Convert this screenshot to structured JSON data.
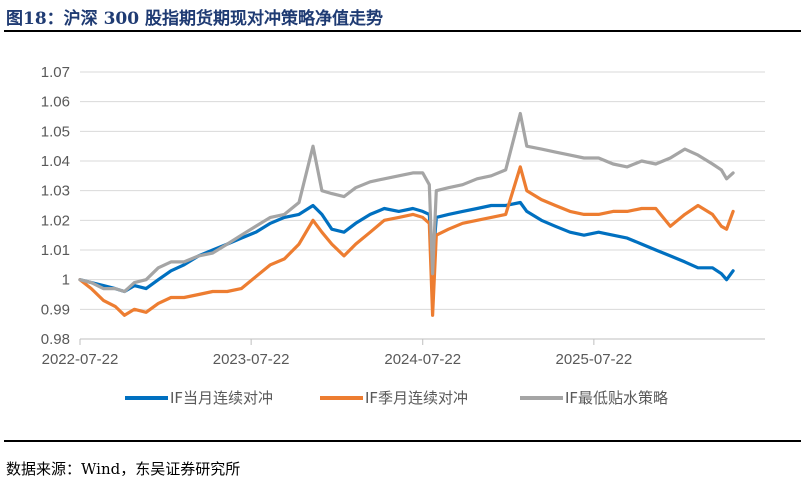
{
  "header": {
    "title": "图18：沪深 300 股指期货期现对冲策略净值走势"
  },
  "footer": {
    "source": "数据来源：Wind，东吴证券研究所"
  },
  "chart_data": {
    "type": "line",
    "title": "图18：沪深 300 股指期货期现对冲策略净值走势",
    "xlabel": "",
    "ylabel": "",
    "x_ticks": [
      "2022-07-22",
      "2023-07-22",
      "2024-07-22",
      "2025-07-22"
    ],
    "y_ticks": [
      "0.98",
      "0.99",
      "1",
      "1.01",
      "1.02",
      "1.03",
      "1.04",
      "1.05",
      "1.06",
      "1.07"
    ],
    "ylim": [
      0.98,
      1.07
    ],
    "xlim": [
      "2022-07-22",
      "2026-07-22"
    ],
    "grid": "horizontal",
    "legend_position": "bottom",
    "series": [
      {
        "name": "IF当月连续对冲",
        "color": "#0070C0",
        "points": [
          [
            "2022-07-22",
            1.0
          ],
          [
            "2022-08-15",
            0.999
          ],
          [
            "2022-09-10",
            0.998
          ],
          [
            "2022-10-05",
            0.997
          ],
          [
            "2022-10-25",
            0.996
          ],
          [
            "2022-11-15",
            0.998
          ],
          [
            "2022-12-10",
            0.997
          ],
          [
            "2023-01-05",
            1.0
          ],
          [
            "2023-02-01",
            1.003
          ],
          [
            "2023-03-01",
            1.005
          ],
          [
            "2023-04-01",
            1.008
          ],
          [
            "2023-05-01",
            1.01
          ],
          [
            "2023-06-01",
            1.012
          ],
          [
            "2023-07-01",
            1.014
          ],
          [
            "2023-08-01",
            1.016
          ],
          [
            "2023-09-01",
            1.019
          ],
          [
            "2023-10-01",
            1.021
          ],
          [
            "2023-11-01",
            1.022
          ],
          [
            "2023-12-01",
            1.025
          ],
          [
            "2023-12-20",
            1.022
          ],
          [
            "2024-01-10",
            1.017
          ],
          [
            "2024-02-05",
            1.016
          ],
          [
            "2024-03-01",
            1.019
          ],
          [
            "2024-04-01",
            1.022
          ],
          [
            "2024-05-01",
            1.024
          ],
          [
            "2024-06-01",
            1.023
          ],
          [
            "2024-07-01",
            1.024
          ],
          [
            "2024-07-22",
            1.023
          ],
          [
            "2024-08-05",
            1.022
          ],
          [
            "2024-08-12",
            1.005
          ],
          [
            "2024-08-20",
            1.021
          ],
          [
            "2024-09-15",
            1.022
          ],
          [
            "2024-10-15",
            1.023
          ],
          [
            "2024-11-15",
            1.024
          ],
          [
            "2024-12-15",
            1.025
          ],
          [
            "2025-01-15",
            1.025
          ],
          [
            "2025-02-15",
            1.026
          ],
          [
            "2025-03-01",
            1.023
          ],
          [
            "2025-04-01",
            1.02
          ],
          [
            "2025-05-01",
            1.018
          ],
          [
            "2025-06-01",
            1.016
          ],
          [
            "2025-07-01",
            1.015
          ],
          [
            "2025-08-01",
            1.016
          ],
          [
            "2025-09-01",
            1.015
          ],
          [
            "2025-10-01",
            1.014
          ],
          [
            "2025-11-01",
            1.012
          ],
          [
            "2025-12-01",
            1.01
          ],
          [
            "2026-01-01",
            1.008
          ],
          [
            "2026-02-01",
            1.006
          ],
          [
            "2026-03-01",
            1.004
          ],
          [
            "2026-04-01",
            1.004
          ],
          [
            "2026-04-20",
            1.002
          ],
          [
            "2026-05-01",
            1.0
          ],
          [
            "2026-05-15",
            1.003
          ]
        ]
      },
      {
        "name": "IF季月连续对冲",
        "color": "#ED7D31",
        "points": [
          [
            "2022-07-22",
            1.0
          ],
          [
            "2022-08-15",
            0.997
          ],
          [
            "2022-09-10",
            0.993
          ],
          [
            "2022-10-05",
            0.991
          ],
          [
            "2022-10-25",
            0.988
          ],
          [
            "2022-11-15",
            0.99
          ],
          [
            "2022-12-10",
            0.989
          ],
          [
            "2023-01-05",
            0.992
          ],
          [
            "2023-02-01",
            0.994
          ],
          [
            "2023-03-01",
            0.994
          ],
          [
            "2023-04-01",
            0.995
          ],
          [
            "2023-05-01",
            0.996
          ],
          [
            "2023-06-01",
            0.996
          ],
          [
            "2023-07-01",
            0.997
          ],
          [
            "2023-08-01",
            1.001
          ],
          [
            "2023-09-01",
            1.005
          ],
          [
            "2023-10-01",
            1.007
          ],
          [
            "2023-11-01",
            1.012
          ],
          [
            "2023-12-01",
            1.02
          ],
          [
            "2023-12-20",
            1.016
          ],
          [
            "2024-01-10",
            1.012
          ],
          [
            "2024-02-05",
            1.008
          ],
          [
            "2024-03-01",
            1.012
          ],
          [
            "2024-04-01",
            1.016
          ],
          [
            "2024-05-01",
            1.02
          ],
          [
            "2024-06-01",
            1.021
          ],
          [
            "2024-07-01",
            1.022
          ],
          [
            "2024-07-22",
            1.021
          ],
          [
            "2024-08-05",
            1.019
          ],
          [
            "2024-08-12",
            0.988
          ],
          [
            "2024-08-20",
            1.015
          ],
          [
            "2024-09-15",
            1.017
          ],
          [
            "2024-10-15",
            1.019
          ],
          [
            "2024-11-15",
            1.02
          ],
          [
            "2024-12-15",
            1.021
          ],
          [
            "2025-01-15",
            1.022
          ],
          [
            "2025-02-15",
            1.038
          ],
          [
            "2025-03-01",
            1.03
          ],
          [
            "2025-04-01",
            1.027
          ],
          [
            "2025-05-01",
            1.025
          ],
          [
            "2025-06-01",
            1.023
          ],
          [
            "2025-07-01",
            1.022
          ],
          [
            "2025-08-01",
            1.022
          ],
          [
            "2025-09-01",
            1.023
          ],
          [
            "2025-10-01",
            1.023
          ],
          [
            "2025-11-01",
            1.024
          ],
          [
            "2025-12-01",
            1.024
          ],
          [
            "2026-01-01",
            1.018
          ],
          [
            "2026-02-01",
            1.022
          ],
          [
            "2026-03-01",
            1.025
          ],
          [
            "2026-04-01",
            1.022
          ],
          [
            "2026-04-20",
            1.018
          ],
          [
            "2026-05-01",
            1.017
          ],
          [
            "2026-05-15",
            1.023
          ]
        ]
      },
      {
        "name": "IF最低贴水策略",
        "color": "#A5A5A5",
        "points": [
          [
            "2022-07-22",
            1.0
          ],
          [
            "2022-08-15",
            0.999
          ],
          [
            "2022-09-10",
            0.997
          ],
          [
            "2022-10-05",
            0.997
          ],
          [
            "2022-10-25",
            0.996
          ],
          [
            "2022-11-15",
            0.999
          ],
          [
            "2022-12-10",
            1.0
          ],
          [
            "2023-01-05",
            1.004
          ],
          [
            "2023-02-01",
            1.006
          ],
          [
            "2023-03-01",
            1.006
          ],
          [
            "2023-04-01",
            1.008
          ],
          [
            "2023-05-01",
            1.009
          ],
          [
            "2023-06-01",
            1.012
          ],
          [
            "2023-07-01",
            1.015
          ],
          [
            "2023-08-01",
            1.018
          ],
          [
            "2023-09-01",
            1.021
          ],
          [
            "2023-10-01",
            1.022
          ],
          [
            "2023-11-01",
            1.026
          ],
          [
            "2023-12-01",
            1.045
          ],
          [
            "2023-12-20",
            1.03
          ],
          [
            "2024-01-10",
            1.029
          ],
          [
            "2024-02-05",
            1.028
          ],
          [
            "2024-03-01",
            1.031
          ],
          [
            "2024-04-01",
            1.033
          ],
          [
            "2024-05-01",
            1.034
          ],
          [
            "2024-06-01",
            1.035
          ],
          [
            "2024-07-01",
            1.036
          ],
          [
            "2024-07-22",
            1.036
          ],
          [
            "2024-08-05",
            1.032
          ],
          [
            "2024-08-12",
            1.002
          ],
          [
            "2024-08-20",
            1.03
          ],
          [
            "2024-09-15",
            1.031
          ],
          [
            "2024-10-15",
            1.032
          ],
          [
            "2024-11-15",
            1.034
          ],
          [
            "2024-12-15",
            1.035
          ],
          [
            "2025-01-15",
            1.037
          ],
          [
            "2025-02-15",
            1.056
          ],
          [
            "2025-03-01",
            1.045
          ],
          [
            "2025-04-01",
            1.044
          ],
          [
            "2025-05-01",
            1.043
          ],
          [
            "2025-06-01",
            1.042
          ],
          [
            "2025-07-01",
            1.041
          ],
          [
            "2025-08-01",
            1.041
          ],
          [
            "2025-09-01",
            1.039
          ],
          [
            "2025-10-01",
            1.038
          ],
          [
            "2025-11-01",
            1.04
          ],
          [
            "2025-12-01",
            1.039
          ],
          [
            "2026-01-01",
            1.041
          ],
          [
            "2026-02-01",
            1.044
          ],
          [
            "2026-03-01",
            1.042
          ],
          [
            "2026-04-01",
            1.039
          ],
          [
            "2026-04-20",
            1.037
          ],
          [
            "2026-05-01",
            1.034
          ],
          [
            "2026-05-15",
            1.036
          ]
        ]
      }
    ]
  }
}
